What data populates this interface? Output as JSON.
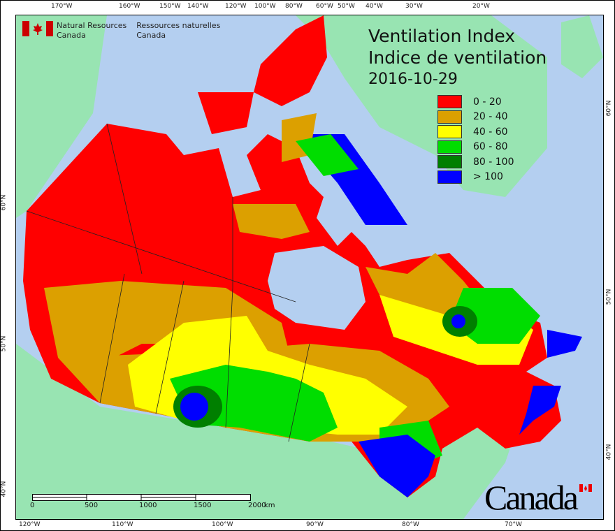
{
  "map": {
    "title_en": "Ventilation Index",
    "title_fr": "Indice de ventilation",
    "date": "2016-10-29",
    "colors": {
      "ocean": "#b4cff0",
      "foreign_land": "#98e4b2"
    },
    "legend": [
      {
        "label": "0 - 20",
        "color": "#ff0000"
      },
      {
        "label": "20 - 40",
        "color": "#dca000"
      },
      {
        "label": "40 - 60",
        "color": "#ffff00"
      },
      {
        "label": "60 - 80",
        "color": "#00dd00"
      },
      {
        "label": "80 - 100",
        "color": "#007f00"
      },
      {
        "label": "> 100",
        "color": "#0000ff"
      }
    ],
    "top_ticks": [
      "170°W",
      "160°W",
      "150°W",
      "140°W",
      "120°W",
      "100°W",
      "80°W",
      "60°W",
      "50°W",
      "40°W",
      "30°W",
      "20°W"
    ],
    "bottom_ticks": [
      "120°W",
      "110°W",
      "100°W",
      "90°W",
      "80°W",
      "70°W"
    ],
    "left_ticks": [
      "60°N",
      "50°N",
      "40°N"
    ],
    "right_ticks": [
      "60°N",
      "50°N",
      "40°N"
    ],
    "scale": {
      "labels": [
        "0",
        "500",
        "1000",
        "1500",
        "2000"
      ],
      "unit": "km"
    }
  },
  "branding": {
    "dept_en_1": "Natural Resources",
    "dept_en_2": "Canada",
    "dept_fr_1": "Ressources naturelles",
    "dept_fr_2": "Canada",
    "wordmark": "Canada"
  }
}
